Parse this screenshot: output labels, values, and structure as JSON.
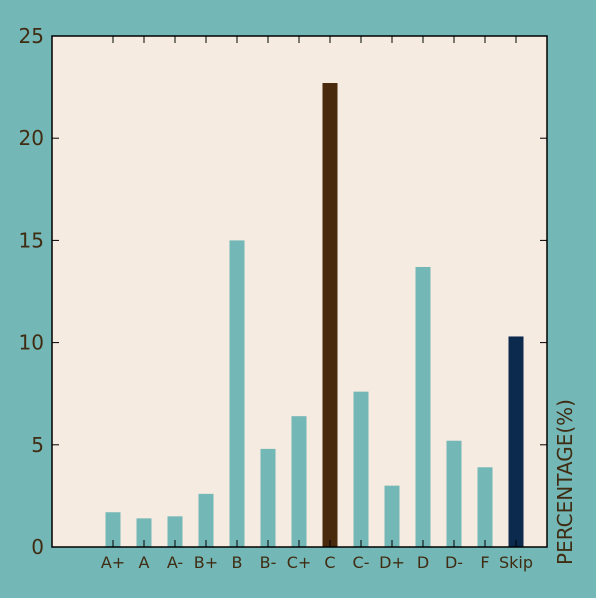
{
  "chart_data": {
    "type": "bar",
    "categories": [
      "A+",
      "A",
      "A-",
      "B+",
      "B",
      "B-",
      "C+",
      "C",
      "C-",
      "D+",
      "D",
      "D-",
      "F",
      "Skip"
    ],
    "values": [
      1.7,
      1.4,
      1.5,
      2.6,
      15.0,
      4.8,
      6.4,
      22.7,
      7.6,
      3.0,
      13.7,
      5.2,
      3.9,
      10.3
    ],
    "colors": [
      "#74b7b7",
      "#74b7b7",
      "#74b7b7",
      "#74b7b7",
      "#74b7b7",
      "#74b7b7",
      "#74b7b7",
      "#4a2a0c",
      "#74b7b7",
      "#74b7b7",
      "#74b7b7",
      "#74b7b7",
      "#74b7b7",
      "#0b2a4e"
    ],
    "ylabel": "PERCENTAGE(%)",
    "ylim": [
      0,
      25
    ],
    "yticks": [
      0,
      5,
      10,
      15,
      20,
      25
    ],
    "grid": false,
    "background": "#f5ebe0",
    "page_background": "#74b7b7",
    "text_color": "#3f2c12"
  }
}
